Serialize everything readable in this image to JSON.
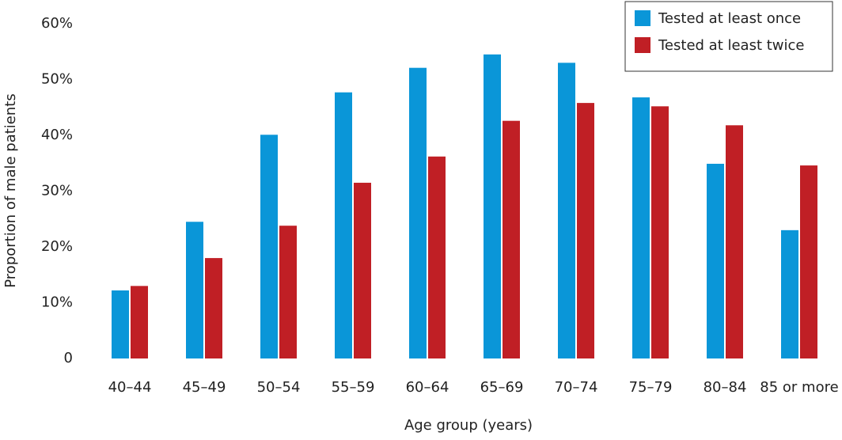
{
  "chart_data": {
    "type": "bar",
    "x_label": "Age group (years)",
    "y_label": "Proportion of male patients",
    "categories": [
      "40–44",
      "45–49",
      "50–54",
      "55–59",
      "60–64",
      "65–69",
      "70–74",
      "75–79",
      "80–84",
      "85 or more"
    ],
    "series": [
      {
        "name": "Tested at least once",
        "color": "#0a96d8",
        "values": [
          12.2,
          24.5,
          40.1,
          47.7,
          52.1,
          54.5,
          53.0,
          46.8,
          34.9,
          23.0
        ]
      },
      {
        "name": "Tested at least twice",
        "color": "#c01f25",
        "values": [
          13.0,
          18.0,
          23.8,
          31.5,
          36.2,
          42.6,
          45.8,
          45.2,
          41.8,
          34.6
        ]
      }
    ],
    "ylim": [
      0,
      60
    ],
    "yticks": [
      0,
      {
        "value": 10,
        "label": "10%"
      },
      {
        "value": 20,
        "label": "20%"
      },
      {
        "value": 30,
        "label": "30%"
      },
      {
        "value": 40,
        "label": "40%"
      },
      {
        "value": 50,
        "label": "50%"
      },
      {
        "value": 60,
        "label": "60%"
      }
    ],
    "legend": "upper right",
    "grid": false
  }
}
